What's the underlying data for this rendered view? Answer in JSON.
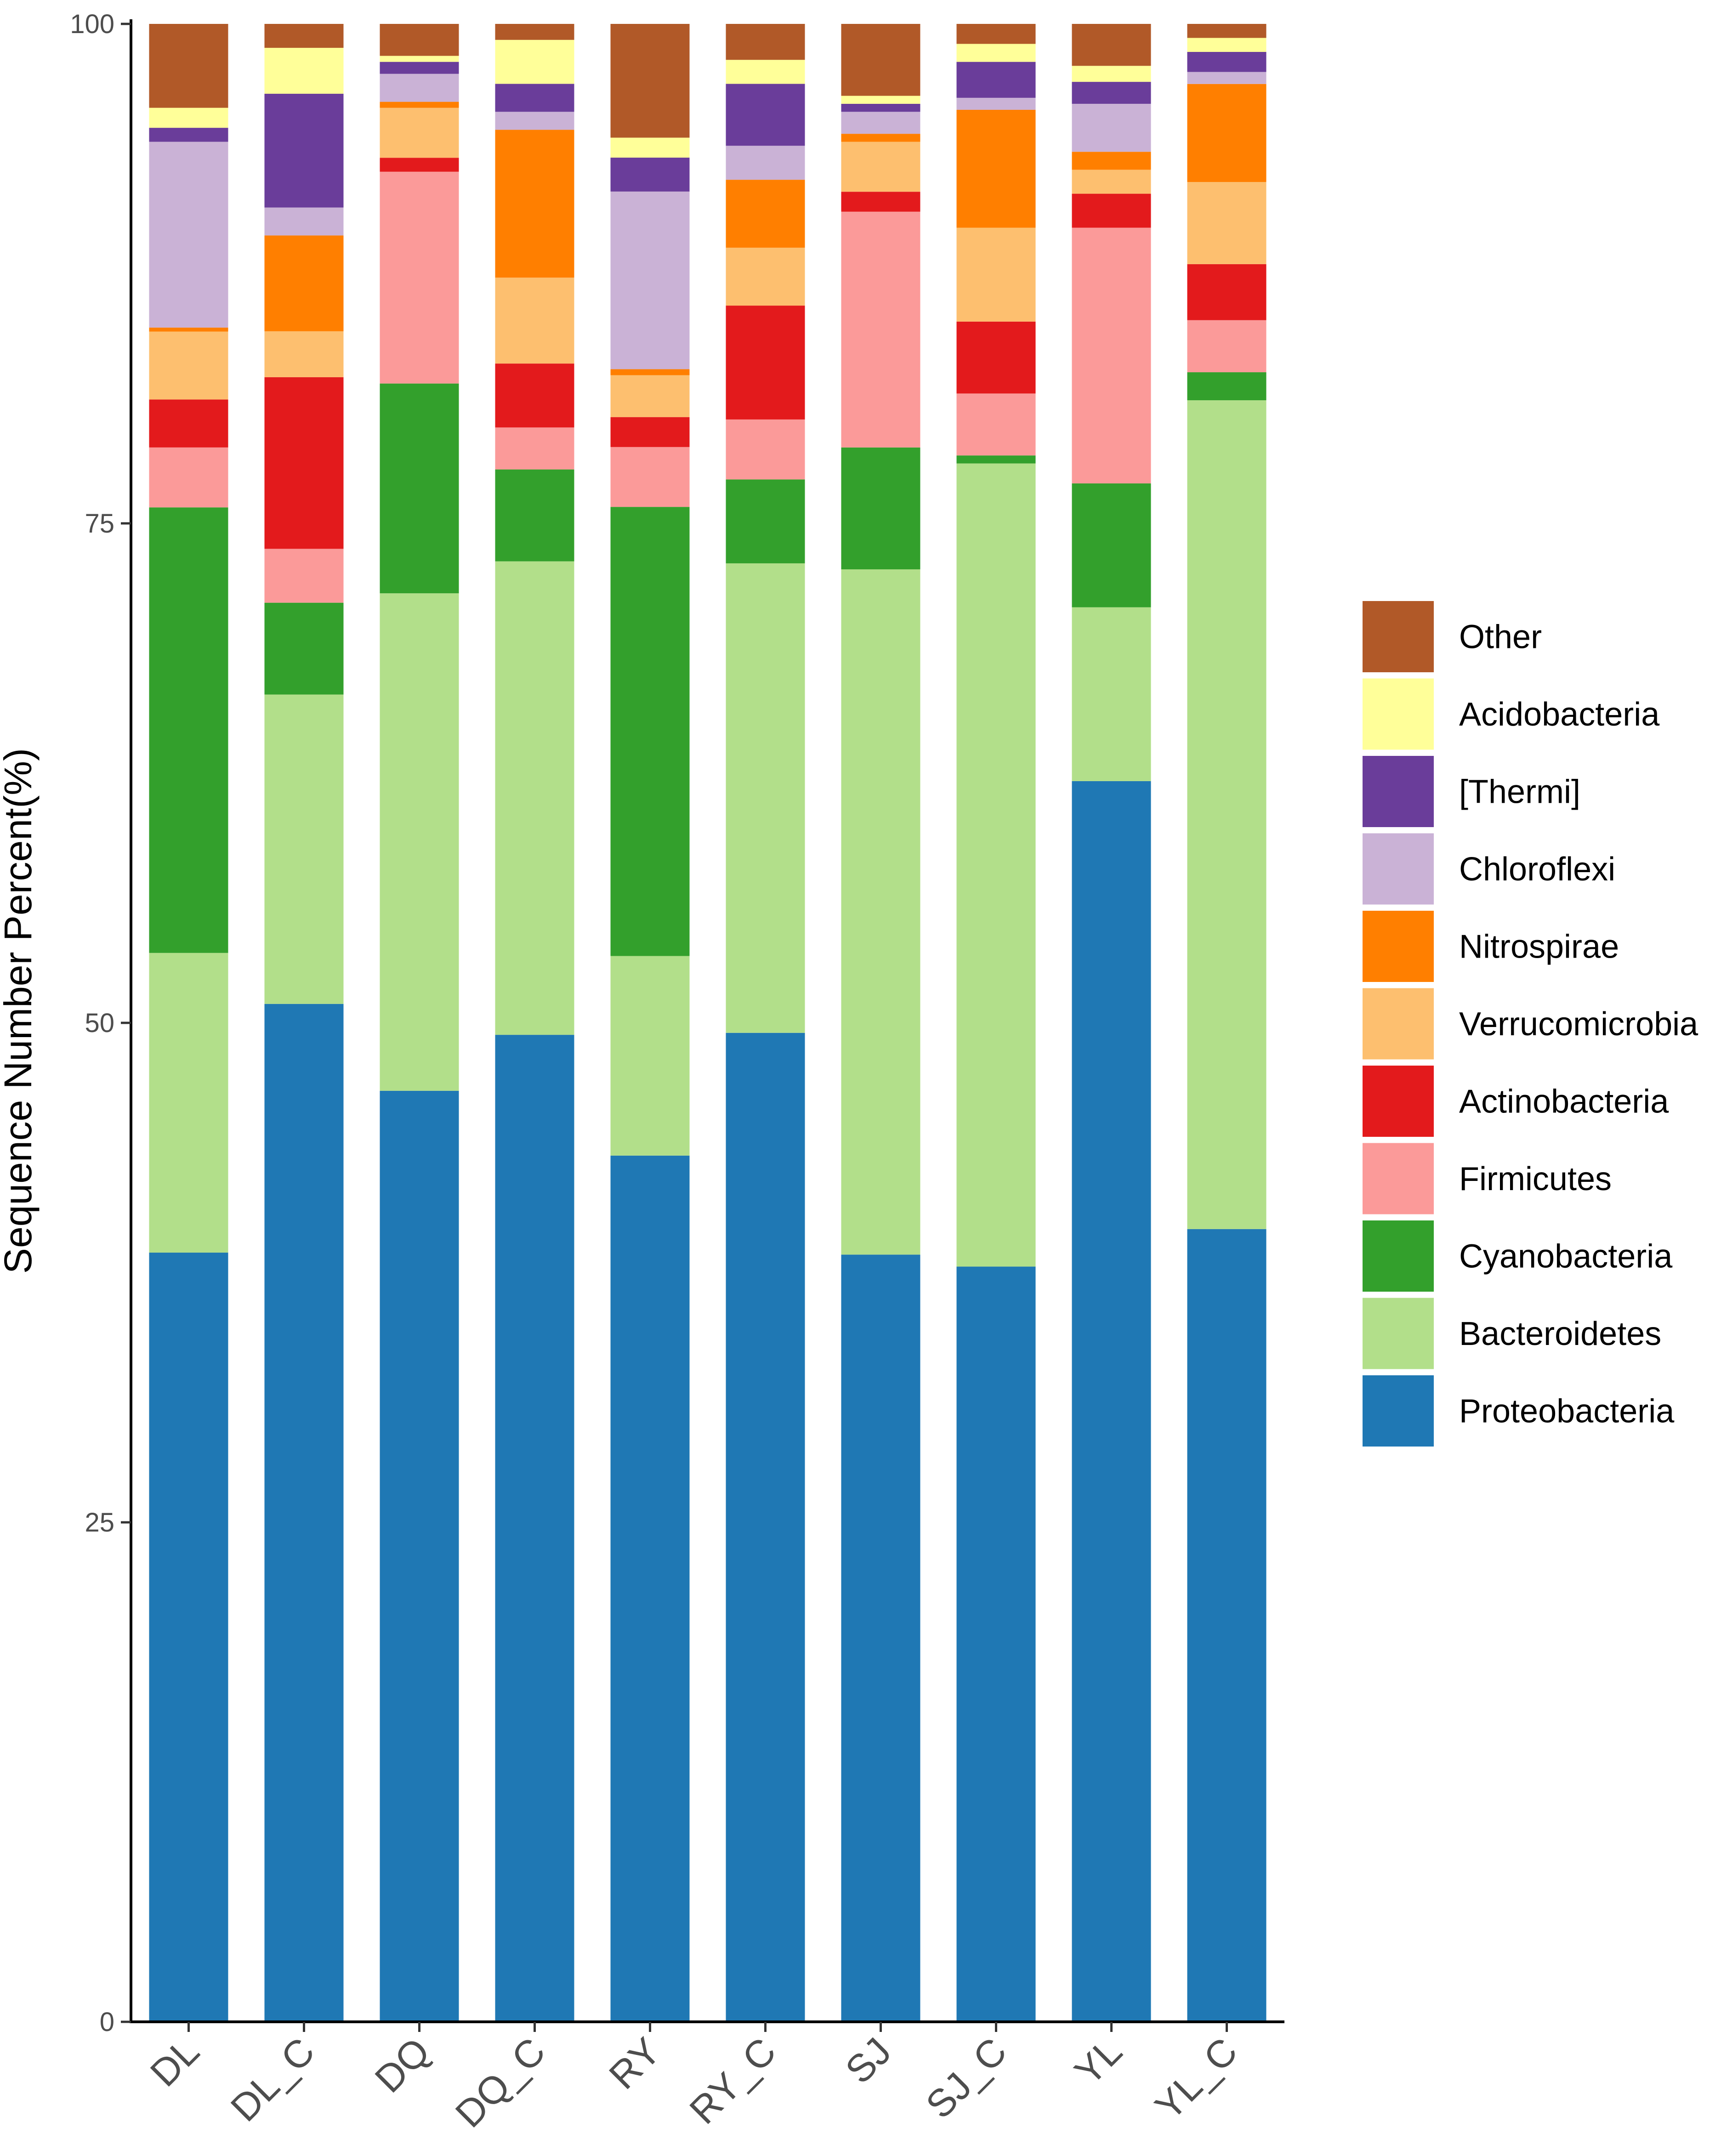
{
  "chart_data": {
    "type": "bar",
    "stacked": true,
    "title": "",
    "xlabel": "",
    "ylabel": "Sequence Number Percent(%)",
    "ylim": [
      0,
      100
    ],
    "yticks": [
      0,
      25,
      50,
      75,
      100
    ],
    "grid": false,
    "legend_position": "right",
    "categories": [
      "DL",
      "DL_C",
      "DQ",
      "DQ_C",
      "RY",
      "RY_C",
      "SJ",
      "SJ_C",
      "YL",
      "YL_C"
    ],
    "series": [
      {
        "name": "Proteobacteria",
        "color": "#1F78B4",
        "values": [
          38.5,
          51.0,
          46.6,
          49.4,
          43.4,
          49.5,
          38.4,
          37.8,
          62.1,
          39.6
        ]
      },
      {
        "name": "Bacteroidetes",
        "color": "#B2DF8A",
        "values": [
          15.0,
          15.5,
          24.9,
          23.7,
          10.0,
          23.5,
          34.3,
          40.2,
          8.7,
          41.4
        ]
      },
      {
        "name": "Cyanobacteria",
        "color": "#33A02C",
        "values": [
          22.3,
          4.6,
          10.5,
          4.6,
          22.5,
          4.2,
          6.1,
          0.4,
          6.2,
          1.4
        ]
      },
      {
        "name": "Firmicutes",
        "color": "#FB9A99",
        "values": [
          3.0,
          2.7,
          10.6,
          2.1,
          3.0,
          3.0,
          11.8,
          3.1,
          12.8,
          2.6
        ]
      },
      {
        "name": "Actinobacteria",
        "color": "#E31A1C",
        "values": [
          2.4,
          8.6,
          0.7,
          3.2,
          1.5,
          5.7,
          1.0,
          3.6,
          1.7,
          2.8
        ]
      },
      {
        "name": "Verrucomicrobia",
        "color": "#FDBF6F",
        "values": [
          3.4,
          2.3,
          2.5,
          4.3,
          2.1,
          2.9,
          2.5,
          4.7,
          1.2,
          4.1
        ]
      },
      {
        "name": "Nitrospirae",
        "color": "#FF7F00",
        "values": [
          0.2,
          4.8,
          0.3,
          7.4,
          0.3,
          3.4,
          0.4,
          5.9,
          0.9,
          4.9
        ]
      },
      {
        "name": "Chloroflexi",
        "color": "#CAB2D6",
        "values": [
          9.3,
          1.4,
          1.4,
          0.9,
          8.9,
          1.7,
          1.1,
          0.6,
          2.4,
          0.6
        ]
      },
      {
        "name": "[Thermi]",
        "color": "#6A3D9A",
        "values": [
          0.7,
          5.7,
          0.6,
          1.4,
          1.7,
          3.1,
          0.4,
          1.8,
          1.1,
          1.0
        ]
      },
      {
        "name": "Acidobacteria",
        "color": "#FFFF99",
        "values": [
          1.0,
          2.3,
          0.3,
          2.2,
          1.0,
          1.2,
          0.4,
          0.9,
          0.8,
          0.7
        ]
      },
      {
        "name": "Other",
        "color": "#B15928",
        "values": [
          4.2,
          1.2,
          1.6,
          0.8,
          5.7,
          1.8,
          3.6,
          1.0,
          2.1,
          0.7
        ]
      }
    ]
  }
}
